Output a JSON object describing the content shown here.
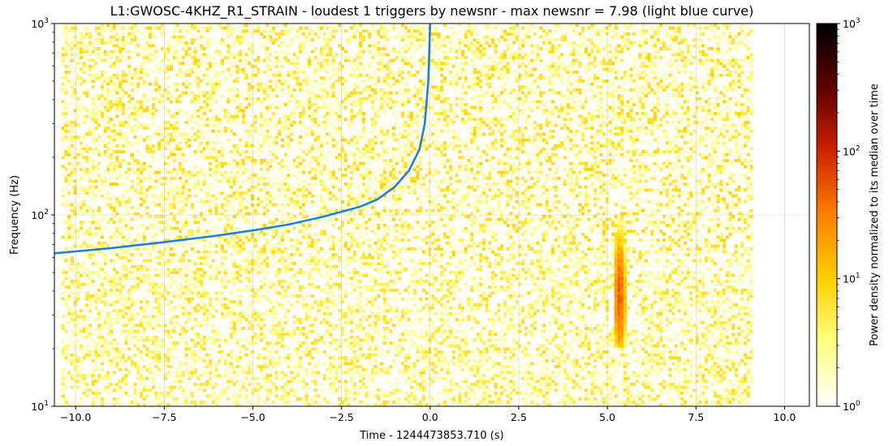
{
  "chart_data": {
    "type": "heatmap",
    "title": "L1:GWOSC-4KHZ_R1_STRAIN - loudest 1 triggers by newsnr - max newsnr = 7.98 (light blue curve)",
    "xlabel": "Time - 1244473853.710 (s)",
    "ylabel": "Frequency (Hz)",
    "colorbar_label": "Power density normalized to its median over time",
    "xlim": [
      -10.6,
      10.7
    ],
    "ylim": [
      10,
      1000
    ],
    "yscale": "log",
    "data_x_range": [
      -10.4,
      9.1
    ],
    "x_ticks": [
      {
        "value": -10.0,
        "label": "−10.0"
      },
      {
        "value": -7.5,
        "label": "−7.5"
      },
      {
        "value": -5.0,
        "label": "−5.0"
      },
      {
        "value": -2.5,
        "label": "−2.5"
      },
      {
        "value": 0.0,
        "label": "0.0"
      },
      {
        "value": 2.5,
        "label": "2.5"
      },
      {
        "value": 5.0,
        "label": "5.0"
      },
      {
        "value": 7.5,
        "label": "7.5"
      },
      {
        "value": 10.0,
        "label": "10.0"
      }
    ],
    "y_ticks": [
      {
        "value": 10,
        "base": "10",
        "exp": "1"
      },
      {
        "value": 100,
        "base": "10",
        "exp": "2"
      },
      {
        "value": 1000,
        "base": "10",
        "exp": "3"
      }
    ],
    "colorbar": {
      "scale": "log",
      "range": [
        1,
        1000
      ],
      "colormap": "afmhot_r",
      "ticks": [
        {
          "value": 1,
          "base": "10",
          "exp": "0"
        },
        {
          "value": 10,
          "base": "10",
          "exp": "1"
        },
        {
          "value": 100,
          "base": "10",
          "exp": "2"
        },
        {
          "value": 1000,
          "base": "10",
          "exp": "3"
        }
      ]
    },
    "grid": true,
    "trigger_curve": {
      "color": "#1a7de0",
      "points": [
        {
          "x": -10.6,
          "y": 63
        },
        {
          "x": -9.0,
          "y": 67
        },
        {
          "x": -7.5,
          "y": 72
        },
        {
          "x": -6.0,
          "y": 78
        },
        {
          "x": -5.0,
          "y": 83
        },
        {
          "x": -4.0,
          "y": 89
        },
        {
          "x": -3.0,
          "y": 98
        },
        {
          "x": -2.0,
          "y": 110
        },
        {
          "x": -1.5,
          "y": 120
        },
        {
          "x": -1.0,
          "y": 140
        },
        {
          "x": -0.6,
          "y": 170
        },
        {
          "x": -0.3,
          "y": 220
        },
        {
          "x": -0.15,
          "y": 300
        },
        {
          "x": -0.05,
          "y": 500
        },
        {
          "x": 0.0,
          "y": 1000
        }
      ]
    },
    "features": [
      {
        "type": "glitch",
        "x_center": 5.35,
        "x_width": 0.3,
        "f_low": 20,
        "f_high": 95,
        "peak_f": 38,
        "peak_value": 60
      },
      {
        "type": "band",
        "f_low": 10,
        "f_high": 60,
        "typical_value": 2.5
      },
      {
        "type": "band",
        "f_low": 60,
        "f_high": 1000,
        "typical_value": 2.0
      }
    ]
  }
}
